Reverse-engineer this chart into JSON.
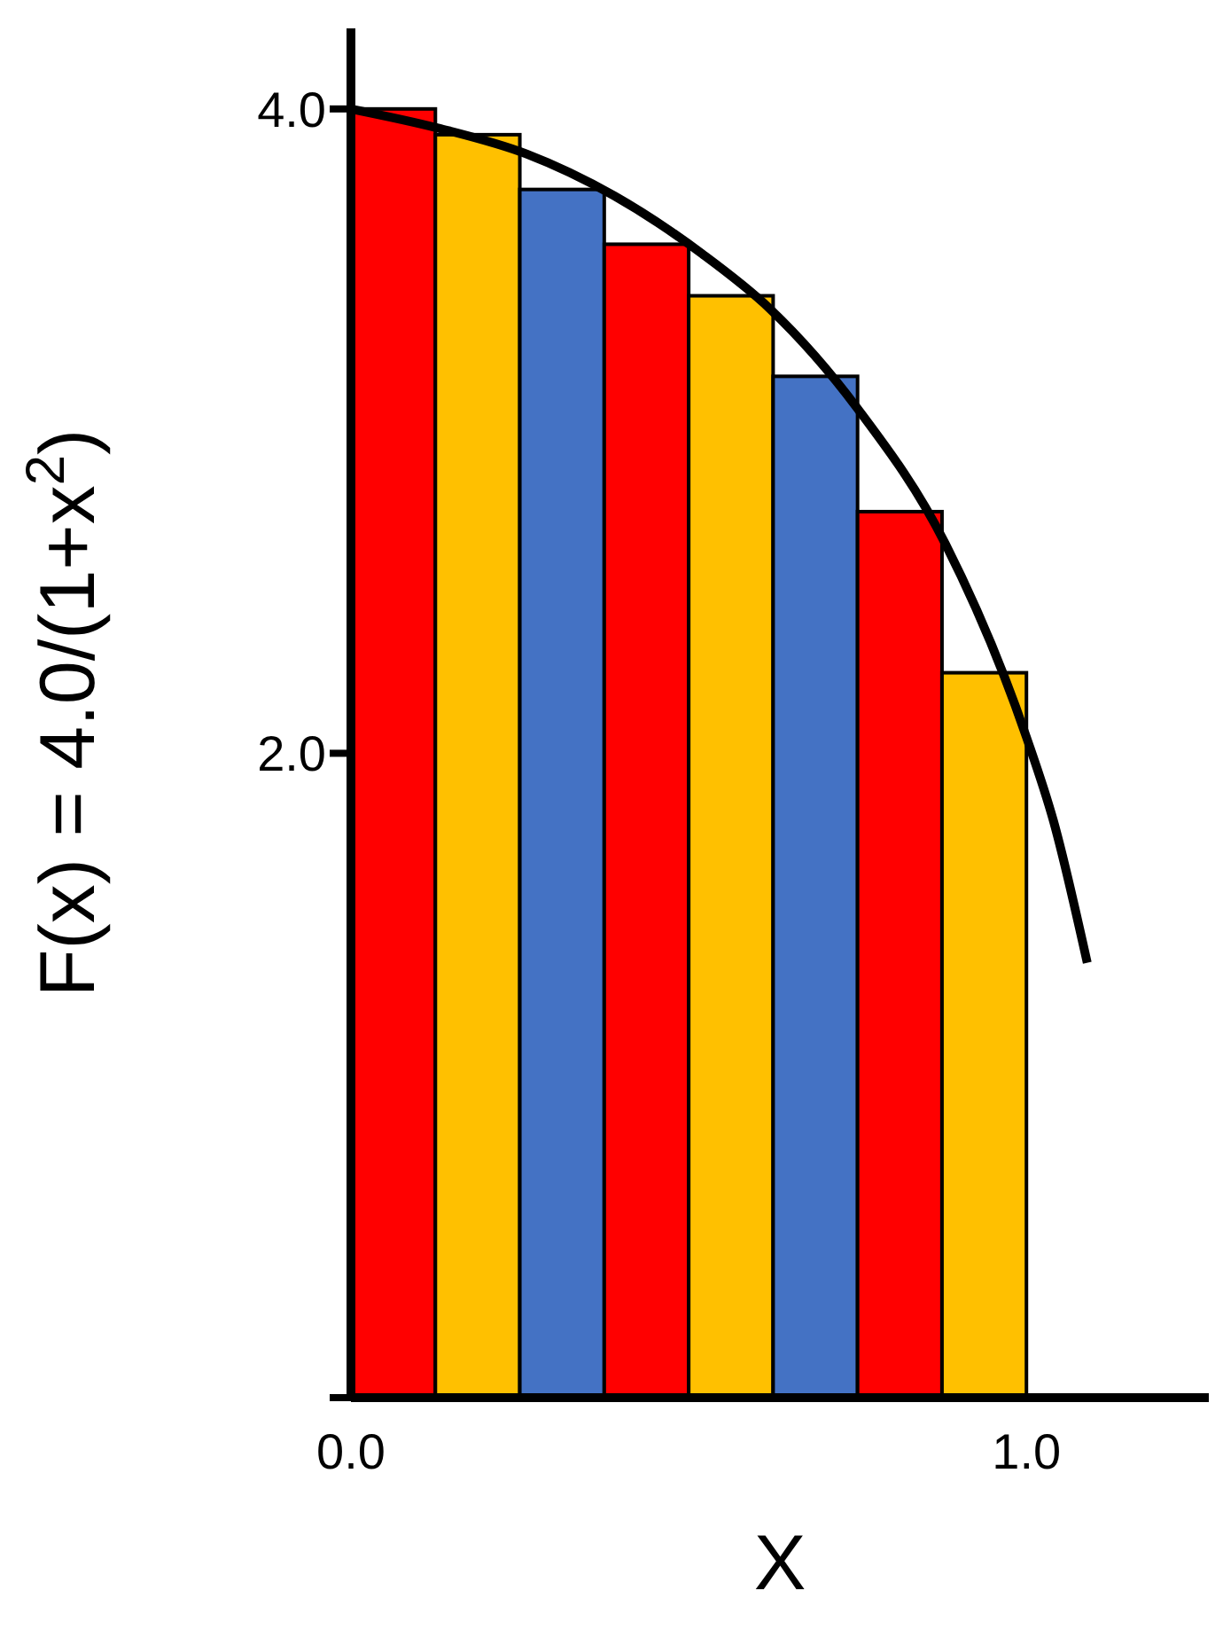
{
  "chart_data": {
    "type": "histogram",
    "xlabel": "X",
    "ylabel": "F(x) = 4.0/(1+x$^{2}$)",
    "bins": [
      0,
      0.125,
      0.25,
      0.375,
      0.5,
      0.625,
      0.75,
      0.875,
      1.0
    ],
    "values": [
      4.0,
      3.92,
      3.75,
      3.58,
      3.42,
      3.17,
      2.75,
      2.25
    ],
    "colors": [
      "#ff0000",
      "#ffc000",
      "#4472c4",
      "#ff0000",
      "#ffc000",
      "#4472c4",
      "#ff0000",
      "#ffc000"
    ],
    "series": [
      {
        "type": "line",
        "color": "#000000",
        "x": [
          0,
          0.13,
          0.26,
          0.39,
          0.52,
          0.62,
          0.75,
          0.88,
          1.0,
          1.04,
          1.09
        ],
        "values": [
          4.0,
          3.94,
          3.86,
          3.73,
          3.55,
          3.38,
          3.07,
          2.65,
          2.05,
          1.79,
          1.35
        ]
      }
    ],
    "xlim": [
      0,
      1.27
    ],
    "xticks": [
      {
        "value": 0,
        "label": "0.0"
      },
      {
        "value": 1,
        "label": "1.0"
      }
    ],
    "ylim": [
      0,
      4.25
    ],
    "yticks": [
      {
        "value": 0,
        "label": null
      },
      {
        "value": 2,
        "label": "2.0"
      },
      {
        "value": 4,
        "label": "4.0"
      }
    ]
  }
}
